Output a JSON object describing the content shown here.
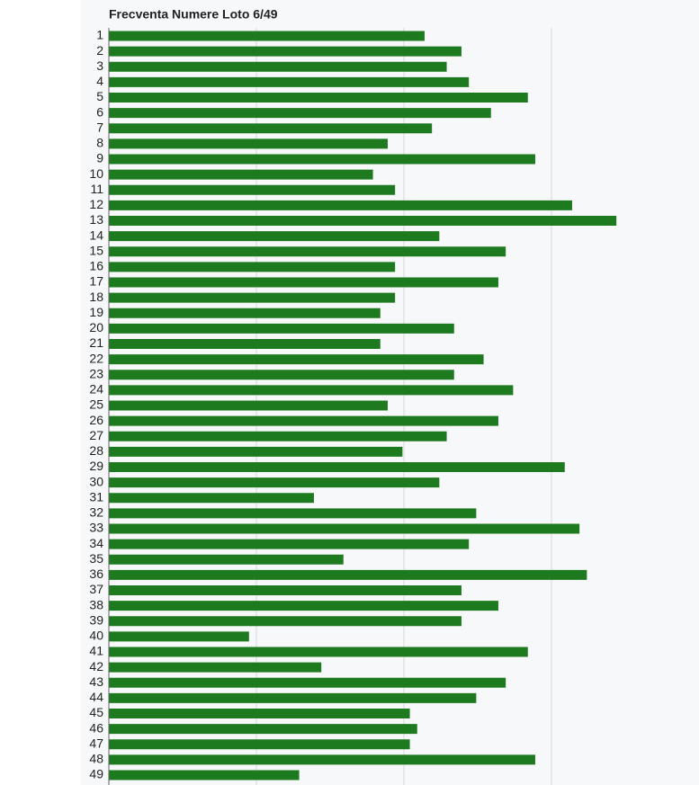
{
  "chart_data": {
    "type": "hbar",
    "title": "Frecventa Numere Loto 6/49",
    "categories": [
      "1",
      "2",
      "3",
      "4",
      "5",
      "6",
      "7",
      "8",
      "9",
      "10",
      "11",
      "12",
      "13",
      "14",
      "15",
      "16",
      "17",
      "18",
      "19",
      "20",
      "21",
      "22",
      "23",
      "24",
      "25",
      "26",
      "27",
      "28",
      "29",
      "30",
      "31",
      "32",
      "33",
      "34",
      "35",
      "36",
      "37",
      "38",
      "39",
      "40",
      "41",
      "42",
      "43",
      "44",
      "45",
      "46",
      "47",
      "48",
      "49"
    ],
    "values": [
      21.4,
      23.9,
      22.9,
      24.4,
      28.4,
      25.9,
      21.9,
      18.9,
      28.9,
      17.9,
      19.4,
      31.4,
      34.4,
      22.4,
      26.9,
      19.4,
      26.4,
      19.4,
      18.4,
      23.4,
      18.4,
      25.4,
      23.4,
      27.4,
      18.9,
      26.4,
      22.9,
      19.9,
      30.9,
      22.4,
      13.9,
      24.9,
      31.9,
      24.4,
      15.9,
      32.4,
      23.9,
      26.4,
      23.9,
      9.5,
      28.4,
      14.4,
      26.9,
      24.9,
      20.4,
      20.9,
      20.4,
      28.9,
      12.9
    ],
    "color": "#1e7a1e",
    "xlim": [
      0,
      40
    ],
    "xticks": [
      10,
      20,
      30
    ],
    "grid": true,
    "show_tick_labels": false
  }
}
